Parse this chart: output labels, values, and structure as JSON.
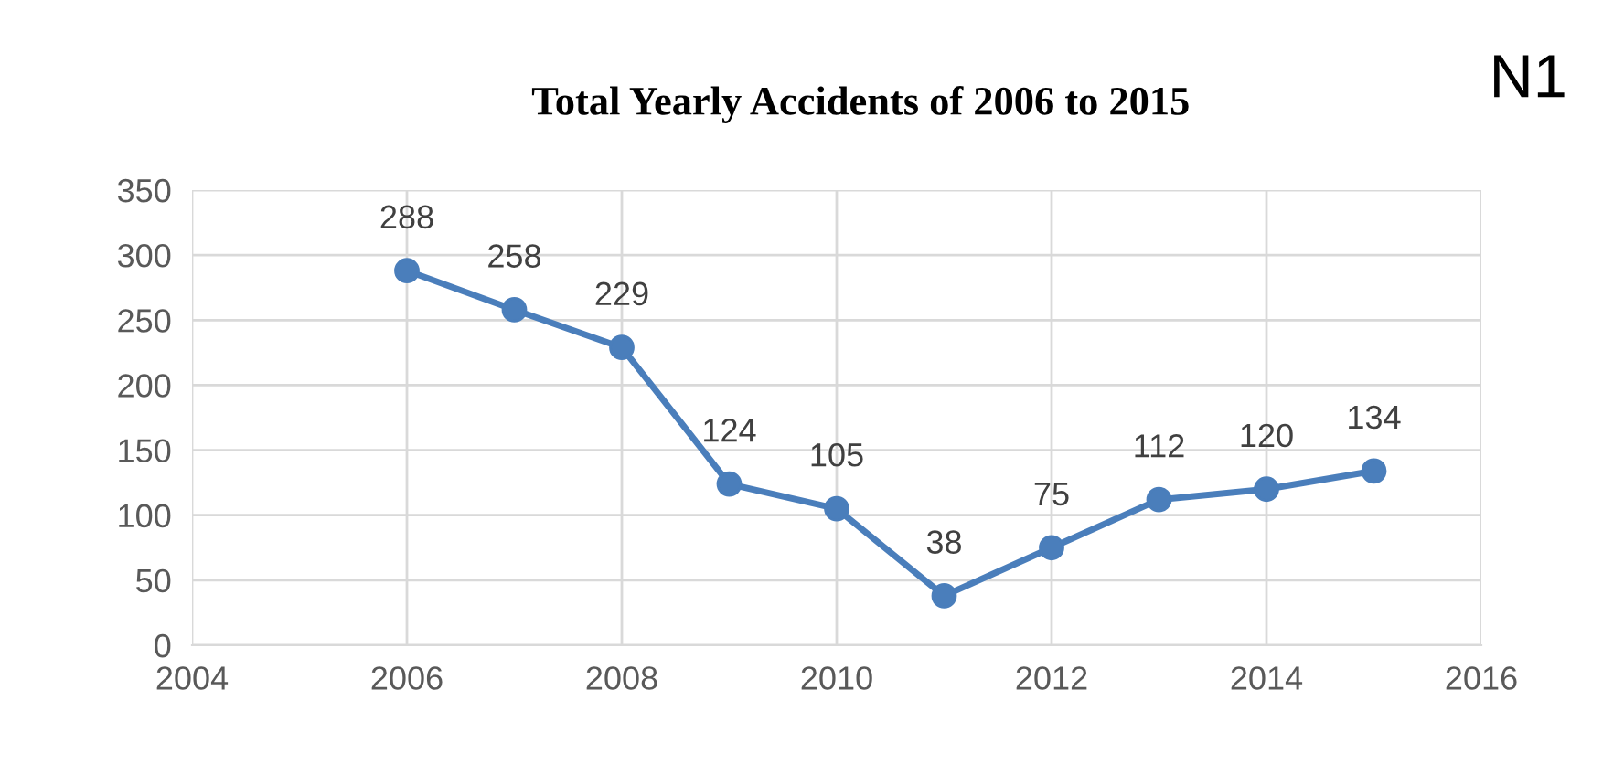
{
  "chart_data": {
    "type": "line",
    "title": "Total Yearly Accidents of 2006 to 2015",
    "annotations": [
      "N1"
    ],
    "x": [
      2006,
      2007,
      2008,
      2009,
      2010,
      2011,
      2012,
      2013,
      2014,
      2015
    ],
    "series": [
      {
        "color": "#4a7ebb",
        "values": [
          288,
          258,
          229,
          124,
          105,
          38,
          75,
          112,
          120,
          134
        ]
      }
    ],
    "xlim": [
      2004,
      2016
    ],
    "xticks": [
      2004,
      2006,
      2008,
      2010,
      2012,
      2014,
      2016
    ],
    "ylim": [
      0,
      350
    ],
    "yticks": [
      0,
      50,
      100,
      150,
      200,
      250,
      300,
      350
    ],
    "grid": true,
    "marker": "circle",
    "line_style": "solid",
    "data_labels": true
  }
}
